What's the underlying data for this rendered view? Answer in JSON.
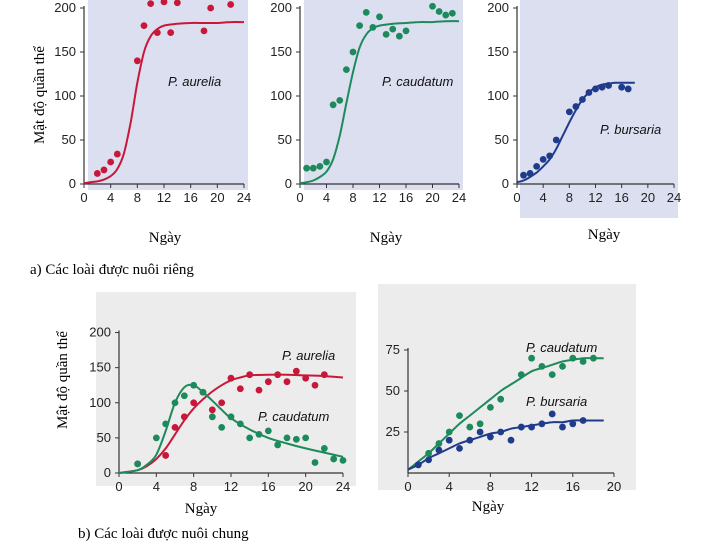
{
  "captions": {
    "a": "a)  Các loài được nuôi riêng",
    "b": "b)  Các loài được nuôi chung"
  },
  "colors": {
    "aurelia": "#c8183a",
    "caudatum": "#1d8a5c",
    "bursaria": "#1f3b8c",
    "plot_bg_a": "#dcdff0",
    "plot_bg_b": "#ececec"
  },
  "chart_data": [
    {
      "type": "line",
      "xlabel": "Ngày",
      "ylabel": "Mật độ quần thể",
      "xlim": [
        0,
        24
      ],
      "ylim": [
        0,
        200
      ],
      "xticks": [
        0,
        4,
        8,
        12,
        16,
        20,
        24
      ],
      "yticks": [
        0,
        50,
        100,
        150,
        200
      ],
      "series": [
        {
          "name": "P. aurelia",
          "curve": {
            "x": [
              0,
              1,
              2,
              3,
              4,
              5,
              6,
              7,
              8,
              9,
              10,
              11,
              12,
              14,
              16,
              18,
              20,
              22,
              24
            ],
            "y": [
              1,
              2,
              3,
              5,
              9,
              17,
              35,
              70,
              115,
              150,
              168,
              176,
              180,
              182,
              183,
              183,
              183,
              184,
              184
            ]
          },
          "points": {
            "x": [
              2,
              3,
              4,
              5,
              8,
              9,
              10,
              11,
              12,
              13,
              14,
              18,
              19,
              22
            ],
            "y": [
              12,
              16,
              25,
              34,
              140,
              180,
              205,
              172,
              207,
              172,
              206,
              174,
              200,
              204
            ]
          }
        }
      ]
    },
    {
      "type": "line",
      "xlabel": "Ngày",
      "xlim": [
        0,
        24
      ],
      "ylim": [
        0,
        200
      ],
      "xticks": [
        0,
        4,
        8,
        12,
        16,
        20,
        24
      ],
      "yticks": [
        0,
        50,
        100,
        150,
        200
      ],
      "series": [
        {
          "name": "P. caudatum",
          "curve": {
            "x": [
              0,
              1,
              2,
              3,
              4,
              5,
              6,
              7,
              8,
              9,
              10,
              11,
              12,
              14,
              16,
              18,
              20,
              22,
              24
            ],
            "y": [
              1,
              2,
              4,
              8,
              14,
              28,
              55,
              92,
              127,
              155,
              170,
              177,
              180,
              182,
              183,
              184,
              184,
              185,
              185
            ]
          },
          "points": {
            "x": [
              1,
              2,
              3,
              4,
              5,
              6,
              7,
              8,
              9,
              10,
              11,
              12,
              13,
              14,
              15,
              16,
              20,
              21,
              22,
              23
            ],
            "y": [
              18,
              18,
              20,
              25,
              90,
              95,
              130,
              150,
              180,
              195,
              178,
              190,
              170,
              176,
              168,
              174,
              202,
              196,
              192,
              194
            ]
          }
        }
      ]
    },
    {
      "type": "line",
      "xlabel": "Ngày",
      "xlim": [
        0,
        24
      ],
      "ylim": [
        0,
        200
      ],
      "xticks": [
        0,
        4,
        8,
        12,
        16,
        20,
        24
      ],
      "yticks": [
        0,
        50,
        100,
        150,
        200
      ],
      "series": [
        {
          "name": "P. bursaria",
          "curve": {
            "x": [
              0,
              1,
              2,
              3,
              4,
              5,
              6,
              7,
              8,
              9,
              10,
              11,
              12,
              13,
              14,
              15,
              16,
              17,
              18
            ],
            "y": [
              2,
              4,
              8,
              13,
              20,
              28,
              40,
              55,
              70,
              84,
              96,
              104,
              110,
              113,
              114,
              115,
              115,
              115,
              115
            ]
          },
          "points": {
            "x": [
              1,
              2,
              3,
              4,
              5,
              6,
              8,
              9,
              10,
              11,
              12,
              13,
              14,
              16,
              17
            ],
            "y": [
              10,
              12,
              20,
              28,
              32,
              50,
              82,
              88,
              96,
              104,
              108,
              110,
              112,
              110,
              108
            ]
          }
        }
      ]
    },
    {
      "type": "line",
      "xlabel": "Ngày",
      "ylabel": "Mật độ quần thể",
      "xlim": [
        0,
        24
      ],
      "ylim": [
        0,
        225
      ],
      "xticks": [
        0,
        4,
        8,
        12,
        16,
        20,
        24
      ],
      "yticks": [
        0,
        50,
        100,
        150,
        200
      ],
      "series": [
        {
          "name": "P. aurelia",
          "curve": {
            "x": [
              0,
              2,
              3,
              4,
              5,
              6,
              7,
              8,
              9,
              10,
              11,
              12,
              13,
              14,
              16,
              18,
              20,
              22,
              24
            ],
            "y": [
              0,
              4,
              10,
              20,
              35,
              55,
              75,
              92,
              105,
              116,
              125,
              132,
              136,
              139,
              140,
              140,
              139,
              138,
              136
            ]
          },
          "points": {
            "x": [
              2,
              5,
              6,
              7,
              8,
              9,
              10,
              11,
              12,
              13,
              14,
              15,
              16,
              17,
              18,
              19,
              20,
              21,
              22
            ],
            "y": [
              13,
              25,
              65,
              80,
              100,
              115,
              90,
              100,
              135,
              120,
              140,
              118,
              130,
              140,
              130,
              145,
              135,
              125,
              140
            ]
          }
        },
        {
          "name": "P. caudatum",
          "curve": {
            "x": [
              0,
              2,
              3,
              4,
              5,
              6,
              7,
              8,
              9,
              10,
              11,
              12,
              14,
              16,
              18,
              20,
              22,
              24
            ],
            "y": [
              0,
              4,
              12,
              26,
              60,
              100,
              122,
              125,
              115,
              103,
              90,
              78,
              62,
              50,
              42,
              35,
              29,
              23
            ]
          },
          "points": {
            "x": [
              2,
              4,
              5,
              6,
              7,
              8,
              9,
              10,
              11,
              12,
              13,
              14,
              15,
              16,
              17,
              18,
              19,
              20,
              21,
              22,
              23,
              24
            ],
            "y": [
              13,
              50,
              70,
              100,
              110,
              125,
              115,
              80,
              65,
              80,
              70,
              50,
              55,
              60,
              40,
              50,
              48,
              50,
              15,
              35,
              20,
              18
            ]
          }
        }
      ]
    },
    {
      "type": "line",
      "xlabel": "Ngày",
      "xlim": [
        0,
        20
      ],
      "ylim": [
        0,
        100
      ],
      "xticks": [
        0,
        4,
        8,
        12,
        16,
        20
      ],
      "yticks": [
        25,
        50,
        75
      ],
      "series": [
        {
          "name": "P. caudatum",
          "curve": {
            "x": [
              0,
              1,
              2,
              3,
              4,
              5,
              6,
              7,
              8,
              9,
              10,
              11,
              12,
              13,
              14,
              15,
              16,
              17,
              18,
              19
            ],
            "y": [
              2,
              7,
              12,
              18,
              24,
              30,
              35,
              40,
              45,
              50,
              54,
              58,
              62,
              64,
              66,
              68,
              69,
              70,
              70,
              70
            ]
          },
          "points": {
            "x": [
              1,
              2,
              3,
              4,
              5,
              6,
              7,
              8,
              9,
              11,
              12,
              13,
              14,
              15,
              16,
              17,
              18
            ],
            "y": [
              5,
              12,
              18,
              25,
              35,
              28,
              30,
              40,
              45,
              60,
              70,
              65,
              60,
              65,
              70,
              68,
              70
            ]
          }
        },
        {
          "name": "P. bursaria",
          "curve": {
            "x": [
              0,
              1,
              2,
              3,
              4,
              5,
              6,
              7,
              8,
              9,
              10,
              11,
              12,
              13,
              14,
              15,
              16,
              17,
              18,
              19
            ],
            "y": [
              2,
              5,
              9,
              12,
              15,
              18,
              20,
              22,
              24,
              25,
              27,
              28,
              29,
              30,
              31,
              31,
              32,
              32,
              32,
              32
            ]
          },
          "points": {
            "x": [
              1,
              2,
              3,
              4,
              5,
              6,
              7,
              8,
              9,
              10,
              11,
              12,
              13,
              14,
              15,
              16,
              17
            ],
            "y": [
              5,
              8,
              14,
              20,
              15,
              20,
              25,
              22,
              25,
              20,
              28,
              28,
              30,
              36,
              28,
              30,
              32
            ]
          }
        }
      ]
    }
  ]
}
